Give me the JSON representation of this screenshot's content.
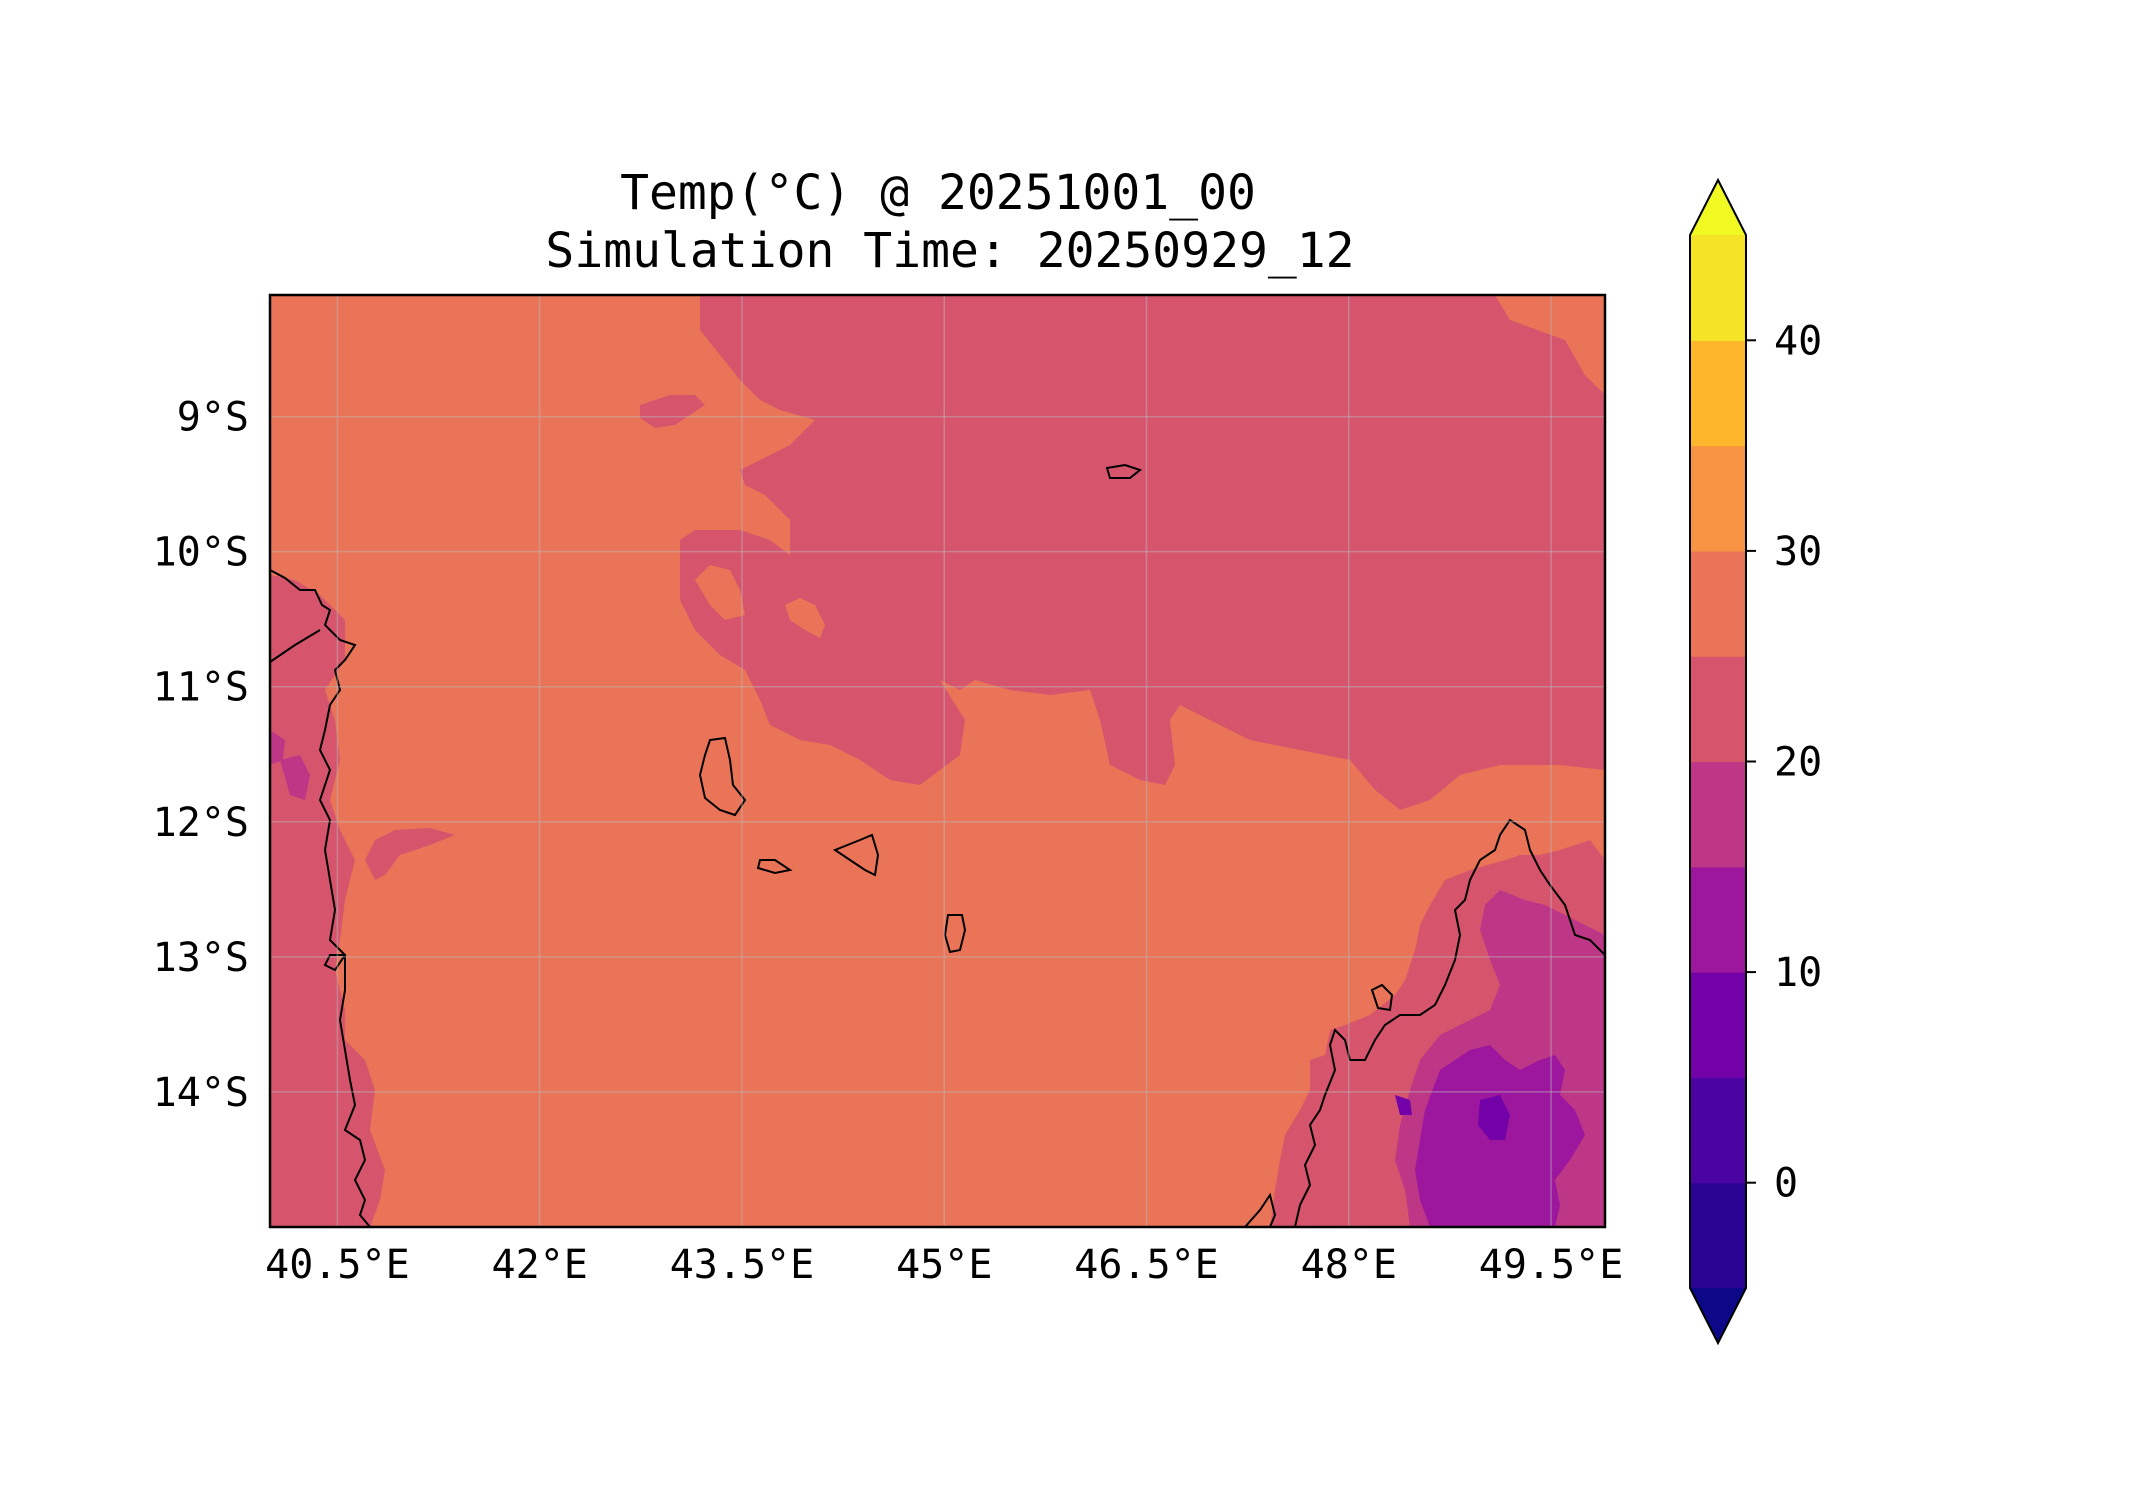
{
  "chart_data": {
    "type": "heatmap",
    "title_line1": "Temp(°C) @ 20251001_00",
    "title_line2": "Simulation Time: 20250929_12",
    "xlabel": "",
    "ylabel": "",
    "grid": true,
    "extent": {
      "lon": [
        40.0,
        49.9
      ],
      "lat": [
        -15.0,
        -8.1
      ]
    },
    "x_ticks": [
      {
        "value": 40.5,
        "label": "40.5°E"
      },
      {
        "value": 42.0,
        "label": "42°E"
      },
      {
        "value": 43.5,
        "label": "43.5°E"
      },
      {
        "value": 45.0,
        "label": "45°E"
      },
      {
        "value": 46.5,
        "label": "46.5°E"
      },
      {
        "value": 48.0,
        "label": "48°E"
      },
      {
        "value": 49.5,
        "label": "49.5°E"
      }
    ],
    "y_ticks": [
      {
        "value": -9,
        "label": "9°S"
      },
      {
        "value": -10,
        "label": "10°S"
      },
      {
        "value": -11,
        "label": "11°S"
      },
      {
        "value": -12,
        "label": "12°S"
      },
      {
        "value": -13,
        "label": "13°S"
      },
      {
        "value": -14,
        "label": "14°S"
      }
    ],
    "colorbar": {
      "levels": [
        -5,
        0,
        5,
        10,
        15,
        20,
        25,
        30,
        35,
        40,
        45
      ],
      "colors": [
        "#2a0593",
        "#4b03a1",
        "#7301a8",
        "#9c179e",
        "#bd3786",
        "#d6556d",
        "#ea7457",
        "#f79342",
        "#feb72d",
        "#f5e426"
      ],
      "under_color": "#0d0887",
      "over_color": "#f0f921",
      "extend": "both",
      "ticks": [
        {
          "value": 0,
          "label": "0"
        },
        {
          "value": 10,
          "label": "10"
        },
        {
          "value": 20,
          "label": "20"
        },
        {
          "value": 30,
          "label": "30"
        },
        {
          "value": 40,
          "label": "40"
        }
      ]
    },
    "dominant_field_color": "#ea7457",
    "coastline_color": "#000000"
  }
}
